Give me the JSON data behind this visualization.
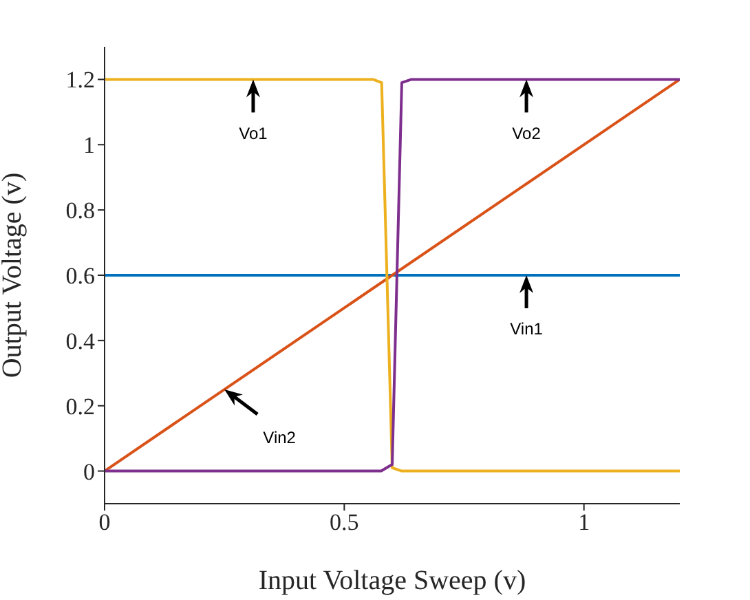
{
  "chart_data": {
    "type": "line",
    "xlabel": "Input Voltage Sweep (v)",
    "ylabel": "Output Voltage (v)",
    "xlim": [
      0,
      1.2
    ],
    "xticks": [
      0,
      0.5,
      1
    ],
    "ylim": [
      -0.1,
      1.3
    ],
    "yticks": [
      0,
      0.2,
      0.4,
      0.6,
      0.8,
      1,
      1.2
    ],
    "series": [
      {
        "color": "#0072bd",
        "x": [
          0,
          1.2
        ],
        "values": [
          0.6,
          0.6
        ]
      },
      {
        "color": "#d95319",
        "x": [
          0,
          1.2
        ],
        "values": [
          0,
          1.2
        ]
      },
      {
        "color": "#edb120",
        "x": [
          0,
          0.56,
          0.578,
          0.6,
          0.62,
          1.2
        ],
        "values": [
          1.2,
          1.2,
          1.19,
          0.01,
          0,
          0
        ]
      },
      {
        "color": "#7e2f8e",
        "x": [
          0,
          0.577,
          0.6,
          0.62,
          0.64,
          1.2
        ],
        "values": [
          0,
          0,
          0.02,
          1.19,
          1.2,
          1.2
        ]
      }
    ],
    "annotations": [
      {
        "text": "Vo1",
        "x": 0.31,
        "y": 1.2
      },
      {
        "text": "Vo2",
        "x": 0.88,
        "y": 1.2
      },
      {
        "text": "Vin1",
        "x": 0.88,
        "y": 0.6
      },
      {
        "text": "Vin2",
        "x": 0.25,
        "y": 0.25
      }
    ]
  }
}
